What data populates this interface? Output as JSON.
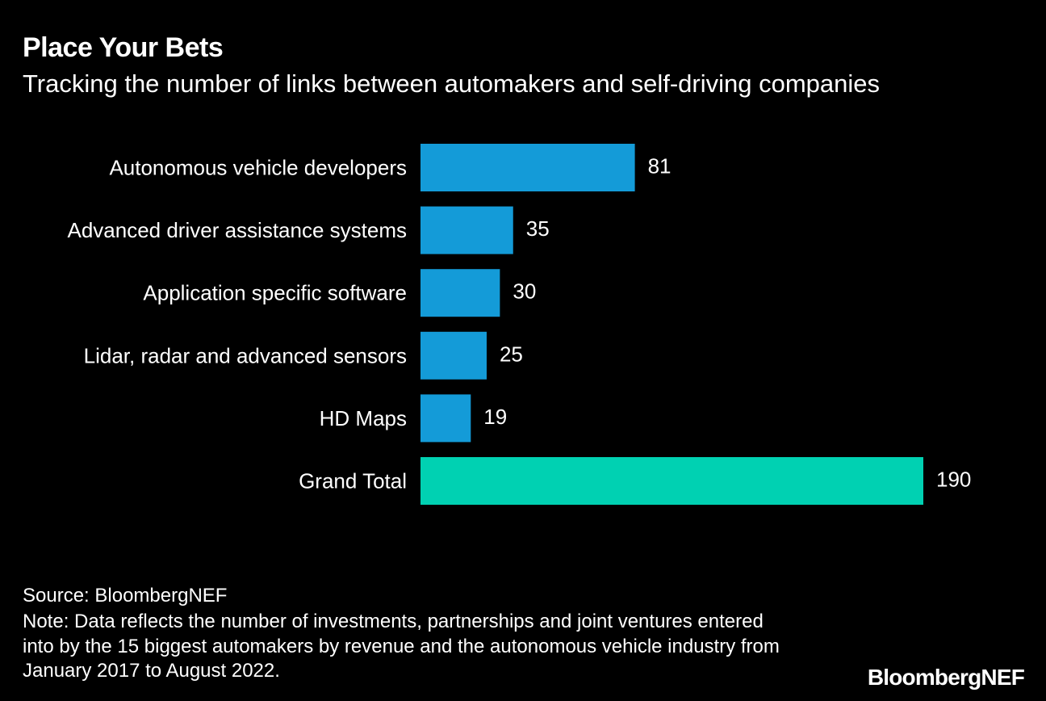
{
  "title": "Place Your Bets",
  "subtitle": "Tracking the number of links between automakers and self-driving companies",
  "source": "Source: BloombergNEF",
  "note": "Note: Data reflects the number of investments, partnerships and joint ventures entered into by the 15 biggest automakers by revenue and the autonomous vehicle industry from January 2017 to August 2022.",
  "brand": "BloombergNEF",
  "colors": {
    "background": "#000000",
    "bar": "#149bd8",
    "total_bar": "#00d1b2",
    "text": "#ffffff"
  },
  "chart_data": {
    "type": "bar",
    "orientation": "horizontal",
    "categories": [
      "Autonomous vehicle developers",
      "Advanced driver assistance systems",
      "Application specific software",
      "Lidar, radar and advanced sensors",
      "HD Maps",
      "Grand Total"
    ],
    "values": [
      81,
      35,
      30,
      25,
      19,
      190
    ],
    "highlight_category": "Grand Total",
    "xlim": [
      0,
      190
    ],
    "grid": false,
    "legend": "none",
    "data_labels": true
  }
}
